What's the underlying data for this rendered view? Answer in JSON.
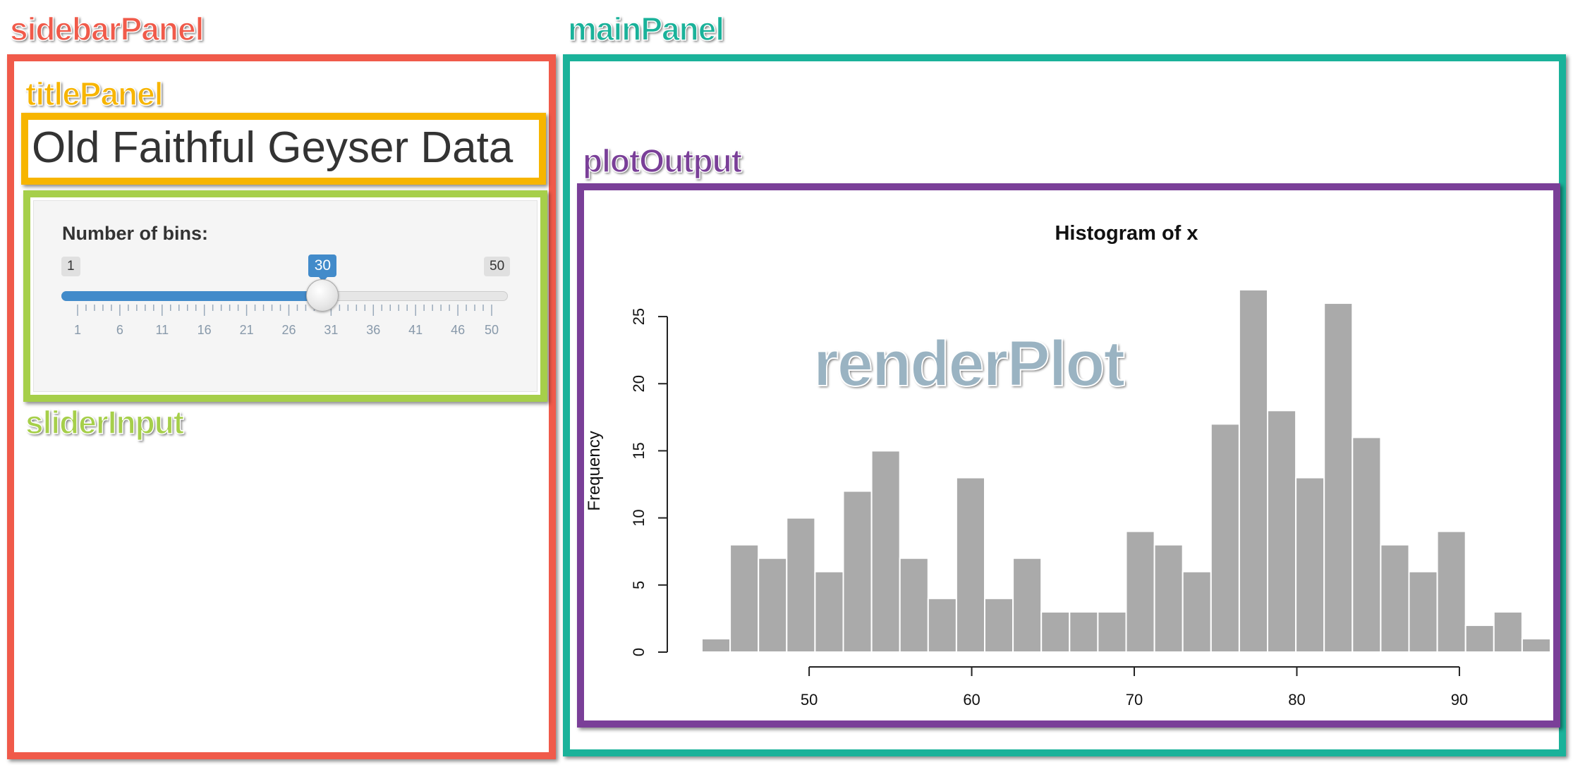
{
  "annotations": {
    "sidebar_panel": "sidebarPanel",
    "title_panel": "titlePanel",
    "slider_input": "sliderInput",
    "main_panel": "mainPanel",
    "plot_output": "plotOutput",
    "render_plot": "renderPlot"
  },
  "colors": {
    "sidebar_panel": "#f05a4a",
    "title_panel": "#f7b500",
    "slider_input": "#a6cf4a",
    "main_panel": "#1ab29a",
    "plot_output": "#7a3f98",
    "render_plot": "#9ab3c2",
    "slider_accent": "#428bca",
    "bar_fill": "#aaaaaa"
  },
  "app": {
    "title": "Old Faithful Geyser Data"
  },
  "slider": {
    "label": "Number of bins:",
    "min": 1,
    "max": 50,
    "value": 30,
    "min_label": "1",
    "max_label": "50",
    "value_label": "30",
    "ticks": [
      "1",
      "6",
      "11",
      "16",
      "21",
      "26",
      "31",
      "36",
      "41",
      "46",
      "50"
    ]
  },
  "chart_data": {
    "type": "bar",
    "title": "Histogram of x",
    "xlabel": "",
    "ylabel": "Frequency",
    "bin_width": 1.74,
    "x_start": 43.4,
    "values": [
      1,
      8,
      7,
      10,
      6,
      12,
      15,
      7,
      4,
      13,
      4,
      7,
      3,
      3,
      3,
      9,
      8,
      6,
      17,
      27,
      18,
      13,
      26,
      16,
      8,
      6,
      9,
      2,
      3,
      1
    ],
    "xlim": [
      43.4,
      95.6
    ],
    "ylim": [
      0,
      27
    ],
    "x_ticks": [
      "50",
      "60",
      "70",
      "80",
      "90"
    ],
    "y_ticks": [
      "0",
      "5",
      "10",
      "15",
      "20",
      "25"
    ],
    "grid": false
  }
}
